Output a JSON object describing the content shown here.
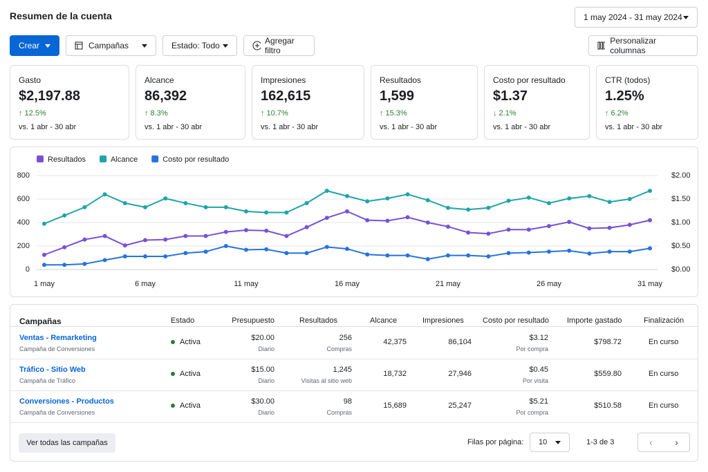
{
  "header": {
    "title": "Resumen de la cuenta",
    "date_range": "1 may 2024 - 31 may 2024"
  },
  "toolbar": {
    "create": "Crear",
    "campaigns": "Campañas",
    "status": "Estado: Todo",
    "add_filter": "Agregar filtro",
    "customize": "Personalizar columnas"
  },
  "kpis": [
    {
      "label": "Gasto",
      "value": "$2,197.88",
      "change": "↑ 12.5%",
      "compare": "vs. 1 abr - 30 abr"
    },
    {
      "label": "Alcance",
      "value": "86,392",
      "change": "↑ 8.3%",
      "compare": "vs. 1 abr - 30 abr"
    },
    {
      "label": "Impresiones",
      "value": "162,615",
      "change": "↑ 10.7%",
      "compare": "vs. 1 abr - 30 abr"
    },
    {
      "label": "Resultados",
      "value": "1,599",
      "change": "↑ 15.3%",
      "compare": "vs. 1 abr - 30 abr"
    },
    {
      "label": "Costo por resultado",
      "value": "$1.37",
      "change": "↓ 2.1%",
      "compare": "vs. 1 abr - 30 abr"
    },
    {
      "label": "CTR (todos)",
      "value": "1.25%",
      "change": "↑ 6.2%",
      "compare": "vs. 1 abr - 30 abr"
    }
  ],
  "chart_data": {
    "type": "line",
    "categories": [
      "1 may",
      null,
      null,
      null,
      null,
      "6 may",
      null,
      null,
      null,
      null,
      "11 may",
      null,
      null,
      null,
      null,
      "16 may",
      null,
      null,
      null,
      null,
      "21 may",
      null,
      null,
      null,
      null,
      "26 may",
      null,
      null,
      null,
      null,
      "31 may"
    ],
    "series": [
      {
        "name": "Resultados",
        "color": "#7652d6",
        "values": [
          125,
          190,
          255,
          285,
          205,
          250,
          255,
          285,
          285,
          320,
          335,
          330,
          285,
          360,
          440,
          495,
          420,
          415,
          445,
          400,
          365,
          315,
          305,
          340,
          340,
          370,
          405,
          350,
          355,
          380,
          420
        ]
      },
      {
        "name": "Alcance",
        "color": "#1fa5a8",
        "values": [
          390,
          460,
          530,
          640,
          565,
          530,
          605,
          565,
          530,
          530,
          495,
          485,
          485,
          565,
          670,
          625,
          580,
          605,
          640,
          590,
          525,
          510,
          525,
          585,
          612,
          565,
          605,
          625,
          575,
          600,
          670
        ]
      },
      {
        "name": "Costo por resultado",
        "color": "#2673dd",
        "axis": "y2",
        "values": [
          0.1,
          0.1,
          0.12,
          0.2,
          0.28,
          0.28,
          0.28,
          0.35,
          0.38,
          0.5,
          0.42,
          0.43,
          0.35,
          0.35,
          0.48,
          0.44,
          0.32,
          0.3,
          0.3,
          0.22,
          0.3,
          0.3,
          0.28,
          0.35,
          0.36,
          0.38,
          0.4,
          0.34,
          0.38,
          0.38,
          0.45
        ]
      }
    ],
    "ylim": [
      0,
      800
    ],
    "yticks": [
      0,
      200,
      400,
      600,
      800
    ],
    "y2lim": [
      0,
      2
    ],
    "y2ticks": [
      {
        "value": 0,
        "label": "$0.00"
      },
      {
        "value": 0.5,
        "label": "$0.50"
      },
      {
        "value": 1,
        "label": "$1.00"
      },
      {
        "value": 1.5,
        "label": "$1.50"
      },
      {
        "value": 2,
        "label": "$2.00"
      }
    ],
    "grid": true,
    "legend": "top-left"
  },
  "table": {
    "title": "Campañas",
    "columns": [
      "Estado",
      "Presupuesto",
      "Resultados",
      "Alcance",
      "Impresiones",
      "Costo por resultado",
      "Importe gastado",
      "Finalización"
    ],
    "rows": [
      {
        "name": "Ventas - Remarketing",
        "type": "Campaña de Conversiones",
        "status": "Activa",
        "budget": "$20.00",
        "budget_period": "Diario",
        "results": "256",
        "results_label": "Compras",
        "reach": "42,375",
        "impressions": "86,104",
        "cost": "$3.12",
        "cost_label": "Por compra",
        "spent": "$798.72",
        "end": "En curso"
      },
      {
        "name": "Tráfico - Sitio Web",
        "type": "Campaña de Tráfico",
        "status": "Activa",
        "budget": "$15.00",
        "budget_period": "Diario",
        "results": "1,245",
        "results_label": "Visitas al sitio web",
        "reach": "18,732",
        "impressions": "27,946",
        "cost": "$0.45",
        "cost_label": "Por visita",
        "spent": "$559.80",
        "end": "En curso"
      },
      {
        "name": "Conversiones - Productos",
        "type": "Campaña de Conversiones",
        "status": "Activa",
        "budget": "$30.00",
        "budget_period": "Diario",
        "results": "98",
        "results_label": "Compras",
        "reach": "15,689",
        "impressions": "25,247",
        "cost": "$5.21",
        "cost_label": "Por compra",
        "spent": "$510.58",
        "end": "En curso"
      }
    ]
  },
  "footer": {
    "view_all": "Ver todas las campañas",
    "rows_per_page": "Filas por página:",
    "page_size": "10",
    "range": "1-3 de 3"
  }
}
